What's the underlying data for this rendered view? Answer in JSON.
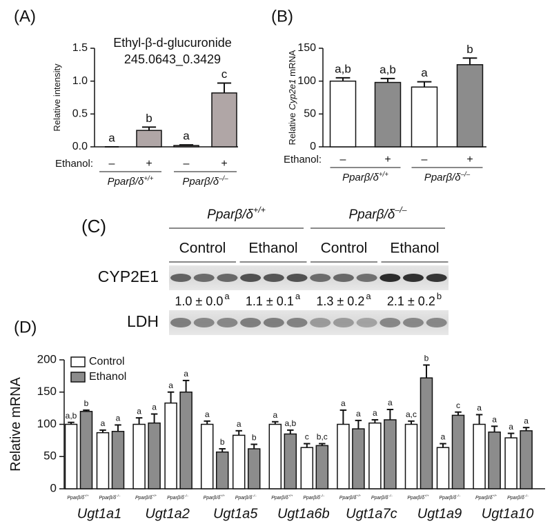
{
  "chart_data": [
    {
      "type": "bar",
      "panel_label": "(A)",
      "title": "Ethyl-β-d-glucuronide",
      "subtitle": "245.0643_0.3429",
      "y_label": [
        "Relative intensity"
      ],
      "ylim": [
        0,
        1.5
      ],
      "yticks": [
        {
          "value": 0,
          "label": "0.0"
        },
        {
          "value": 0.5,
          "label": "0.5"
        },
        {
          "value": 1,
          "label": "1.0"
        },
        {
          "value": 1.5,
          "label": "1.5"
        }
      ],
      "row_label": "Ethanol:",
      "categories": [
        "–",
        "+",
        "–",
        "+"
      ],
      "groups": [
        {
          "name": "Pparβ/δ",
          "sup": "+/+"
        },
        {
          "name": "Pparβ/δ",
          "sup": "–/–"
        }
      ],
      "values": [
        0.0,
        0.25,
        0.02,
        0.82
      ],
      "errors": [
        0.0,
        0.05,
        0.01,
        0.15
      ],
      "value_labels": [
        "a",
        "b",
        "a",
        "c"
      ],
      "colors": [
        "#b0a6a6",
        "#b0a6a6",
        "#b0a6a6",
        "#b0a6a6"
      ]
    },
    {
      "type": "bar",
      "panel_label": "(B)",
      "y_label": [
        "Relative",
        "Cyp2e1",
        "mRNA"
      ],
      "ylim": [
        0,
        150
      ],
      "yticks": [
        0,
        50,
        100,
        150
      ],
      "row_label": "Ethanol:",
      "categories": [
        "–",
        "+",
        "–",
        "+"
      ],
      "groups": [
        {
          "name": "Pparβ/δ",
          "sup": "+/+"
        },
        {
          "name": "Pparβ/δ",
          "sup": "–/–"
        }
      ],
      "values": [
        100,
        98,
        91,
        125
      ],
      "errors": [
        5,
        6,
        8,
        10
      ],
      "value_labels": [
        "a,b",
        "a,b",
        "a",
        "b"
      ],
      "colors": [
        "#ffffff",
        "#8c8c8c",
        "#ffffff",
        "#8c8c8c"
      ]
    },
    {
      "type": "grouped_bar",
      "panel_label": "(D)",
      "y_label": [
        "Relative mRNA"
      ],
      "ylim": [
        0,
        200
      ],
      "yticks": [
        0,
        50,
        100,
        150,
        200
      ],
      "groups": [
        "Ugt1a1",
        "Ugt1a2",
        "Ugt1a5",
        "Ugt1a6b",
        "Ugt1a7c",
        "Ugt1a9",
        "Ugt1a10"
      ],
      "subgroups": [
        {
          "name": "Pparβ/δ",
          "sup": "+/+"
        },
        {
          "name": "Pparβ/δ",
          "sup": "–/–"
        }
      ],
      "legend": "top-left",
      "series": [
        {
          "name": "Control",
          "color": "#ffffff",
          "values": [
            100,
            87,
            100,
            133,
            100,
            83,
            100,
            64,
            100,
            102,
            100,
            64,
            100,
            79
          ],
          "errors": [
            3,
            4,
            10,
            17,
            5,
            7,
            4,
            6,
            22,
            5,
            5,
            6,
            15,
            7
          ],
          "value_labels": [
            "a,b",
            "a",
            "a",
            "a",
            "a",
            "a",
            "a",
            "c",
            "a",
            "a",
            "a,c",
            "a",
            "a",
            "a"
          ]
        },
        {
          "name": "Ethanol",
          "color": "#8c8c8c",
          "values": [
            120,
            89,
            102,
            150,
            57,
            62,
            85,
            67,
            93,
            107,
            172,
            114,
            88,
            90
          ],
          "errors": [
            2,
            10,
            14,
            18,
            5,
            7,
            6,
            3,
            13,
            16,
            20,
            5,
            9,
            5
          ],
          "value_labels": [
            "b",
            "a",
            "a",
            "a",
            "b",
            "b",
            "a,b",
            "b,c",
            "a",
            "a",
            "b",
            "c",
            "a",
            "a"
          ]
        }
      ]
    }
  ],
  "blot": {
    "panel_label": "(C)",
    "genotypes": [
      {
        "name": "Pparβ/δ",
        "sup": "+/+"
      },
      {
        "name": "Pparβ/δ",
        "sup": "–/–"
      }
    ],
    "conditions": [
      "Control",
      "Ethanol",
      "Control",
      "Ethanol"
    ],
    "rows": [
      "CYP2E1",
      "LDH"
    ],
    "quantification": [
      {
        "text": "1.0 ± 0.0",
        "letter": "a"
      },
      {
        "text": "1.1 ± 0.1",
        "letter": "a"
      },
      {
        "text": "1.3 ± 0.2",
        "letter": "a"
      },
      {
        "text": "2.1 ± 0.2",
        "letter": "b"
      }
    ]
  }
}
